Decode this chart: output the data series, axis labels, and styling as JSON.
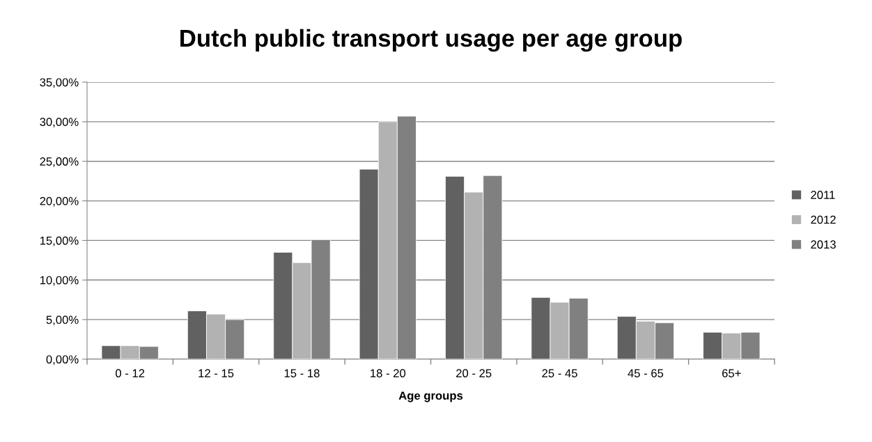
{
  "chart_data": {
    "type": "bar",
    "title": "Dutch public transport usage per age group",
    "xlabel": "Age groups",
    "categories": [
      "0 - 12",
      "12 - 15",
      "15 - 18",
      "18 - 20",
      "20 - 25",
      "25 - 45",
      "45 - 65",
      "65+"
    ],
    "series": [
      {
        "name": "2011",
        "color": "#616161",
        "values": [
          1.7,
          6.1,
          13.5,
          24.0,
          23.1,
          7.8,
          5.4,
          3.4
        ]
      },
      {
        "name": "2012",
        "color": "#b2b2b2",
        "values": [
          1.7,
          5.7,
          12.2,
          30.0,
          21.1,
          7.2,
          4.8,
          3.3
        ]
      },
      {
        "name": "2013",
        "color": "#808080",
        "values": [
          1.6,
          5.0,
          15.1,
          30.7,
          23.2,
          7.7,
          4.6,
          3.4
        ]
      }
    ],
    "ylim": [
      0,
      35
    ],
    "yticks": [
      {
        "value": 0,
        "label": "0,00%"
      },
      {
        "value": 5,
        "label": "5,00%"
      },
      {
        "value": 10,
        "label": "10,00%"
      },
      {
        "value": 15,
        "label": "15,00%"
      },
      {
        "value": 20,
        "label": "20,00%"
      },
      {
        "value": 25,
        "label": "25,00%"
      },
      {
        "value": 30,
        "label": "30,00%"
      },
      {
        "value": 35,
        "label": "35,00%"
      }
    ],
    "grid": "y",
    "legend": "right"
  }
}
